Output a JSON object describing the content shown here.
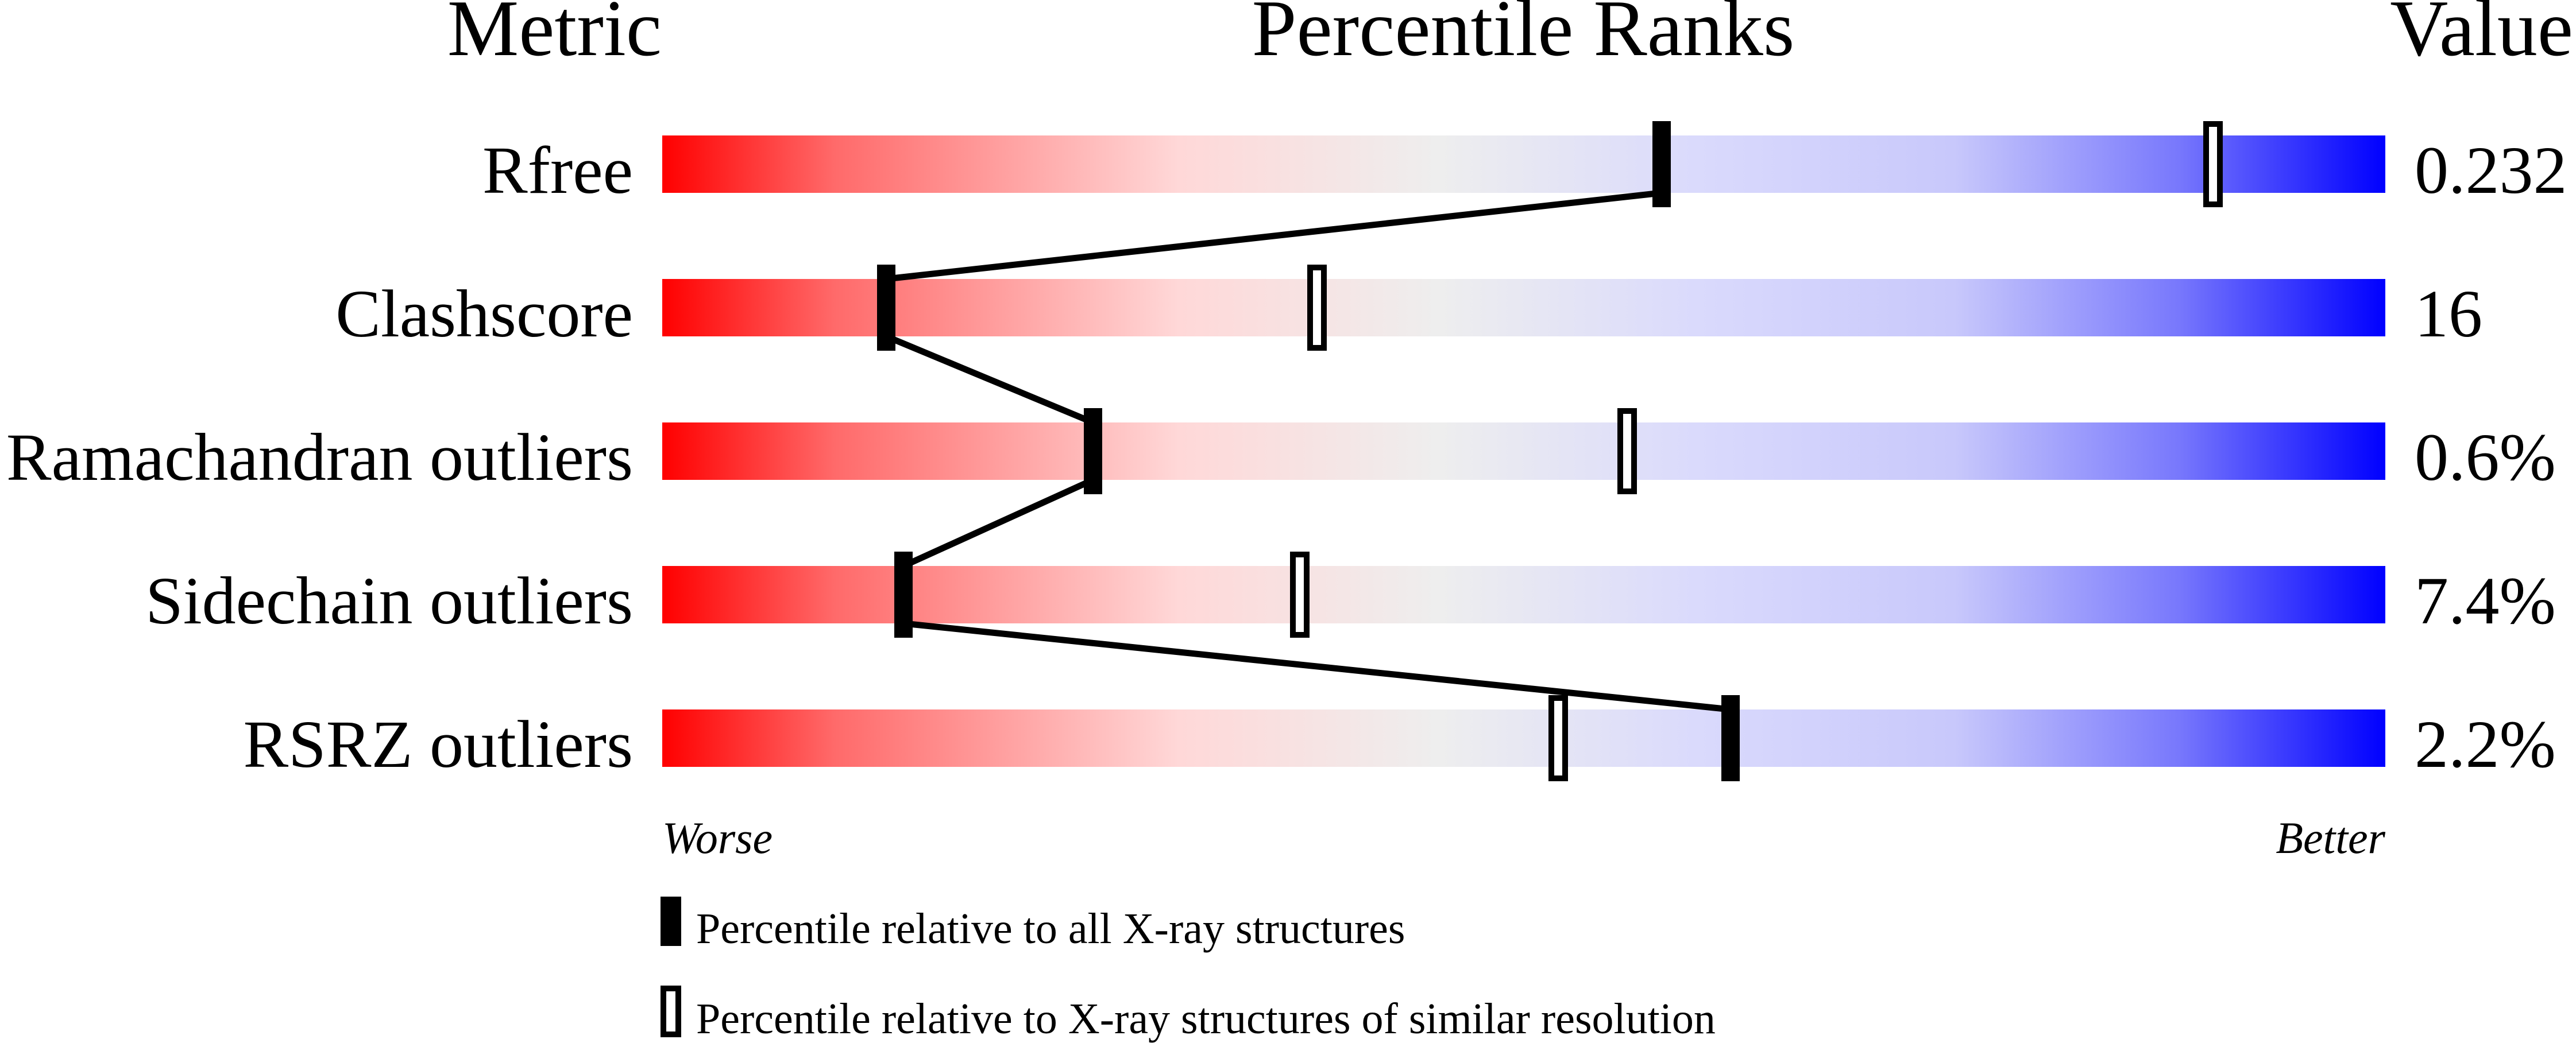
{
  "chart_data": {
    "type": "bar",
    "headers": {
      "metric": "Metric",
      "percentile": "Percentile Ranks",
      "value": "Value"
    },
    "xlim": [
      0,
      100
    ],
    "axis_labels": {
      "left": "Worse",
      "right": "Better"
    },
    "gradient_colors": {
      "worse": "#ff0000",
      "middle": "#eeeeee",
      "better": "#0000ff"
    },
    "metrics": [
      {
        "name": "Rfree",
        "value": "0.232",
        "percentile_all": 58,
        "percentile_similar": 90
      },
      {
        "name": "Clashscore",
        "value": "16",
        "percentile_all": 13,
        "percentile_similar": 38
      },
      {
        "name": "Ramachandran outliers",
        "value": "0.6%",
        "percentile_all": 25,
        "percentile_similar": 56
      },
      {
        "name": "Sidechain outliers",
        "value": "7.4%",
        "percentile_all": 14,
        "percentile_similar": 37
      },
      {
        "name": "RSRZ outliers",
        "value": "2.2%",
        "percentile_all": 62,
        "percentile_similar": 52
      }
    ],
    "legend": [
      {
        "marker": "filled",
        "label": "Percentile relative to all X-ray structures"
      },
      {
        "marker": "open",
        "label": "Percentile relative to X-ray structures of similar resolution"
      }
    ]
  }
}
